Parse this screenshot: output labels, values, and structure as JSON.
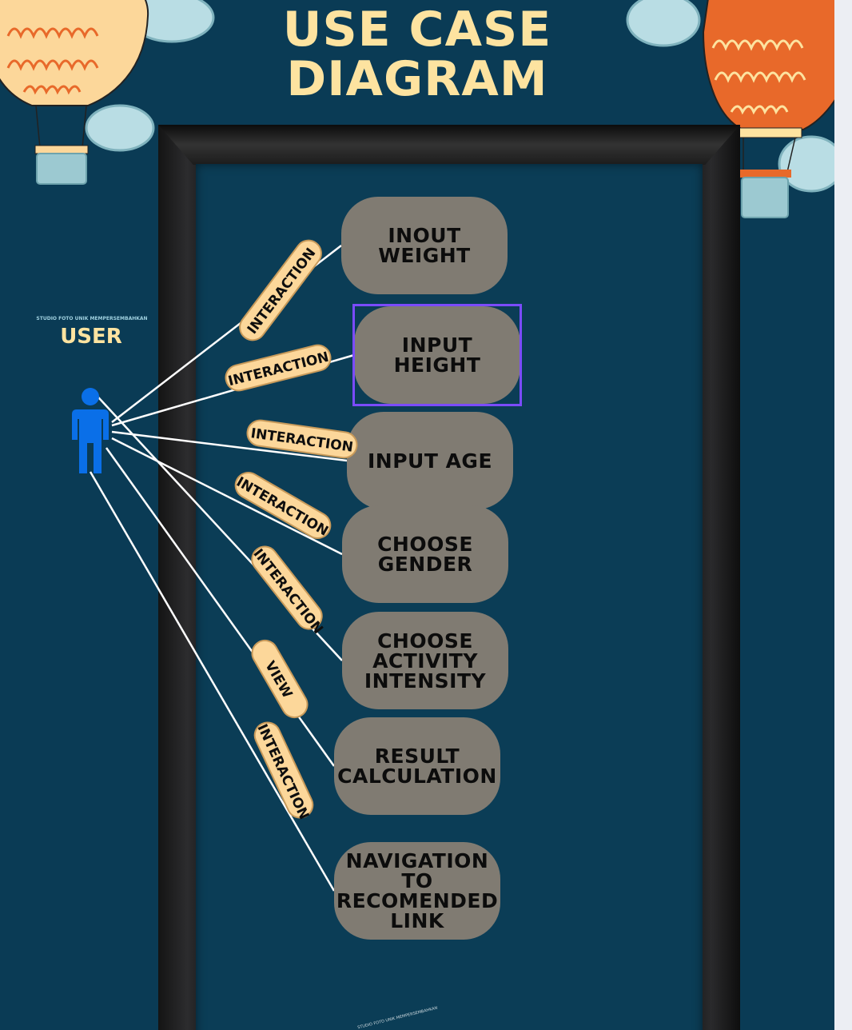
{
  "diagram": {
    "title_line1": "USE CASE",
    "title_line2": "DIAGRAM",
    "actor": {
      "label": "USER",
      "sublabel": "STUDIO FOTO UNIK MEMPERSEMBAHKAN",
      "icon": "person-icon",
      "color": "#0a6fe8"
    },
    "use_cases": [
      "INOUT WEIGHT",
      "INPUT HEIGHT",
      "INPUT AGE",
      "CHOOSE GENDER",
      "CHOOSE ACTIVITY INTENSITY",
      "RESULT CALCULATION",
      "NAVIGATION TO RECOMENDED LINK"
    ],
    "relations": [
      "INTERACTION",
      "INTERACTION",
      "INTERACTION",
      "INTERACTION",
      "INTERACTION",
      "VIEW",
      "INTERACTION"
    ],
    "footer_text": "STUDIO FOTO UNIK MEMPERSEMBAHKAN",
    "colors": {
      "background": "#0a3b55",
      "title": "#fde3a0",
      "use_case_fill": "#807b72",
      "relation_tag_fill": "#fcd79a",
      "selection": "#7b4bff",
      "edge": "#ffffff"
    }
  }
}
